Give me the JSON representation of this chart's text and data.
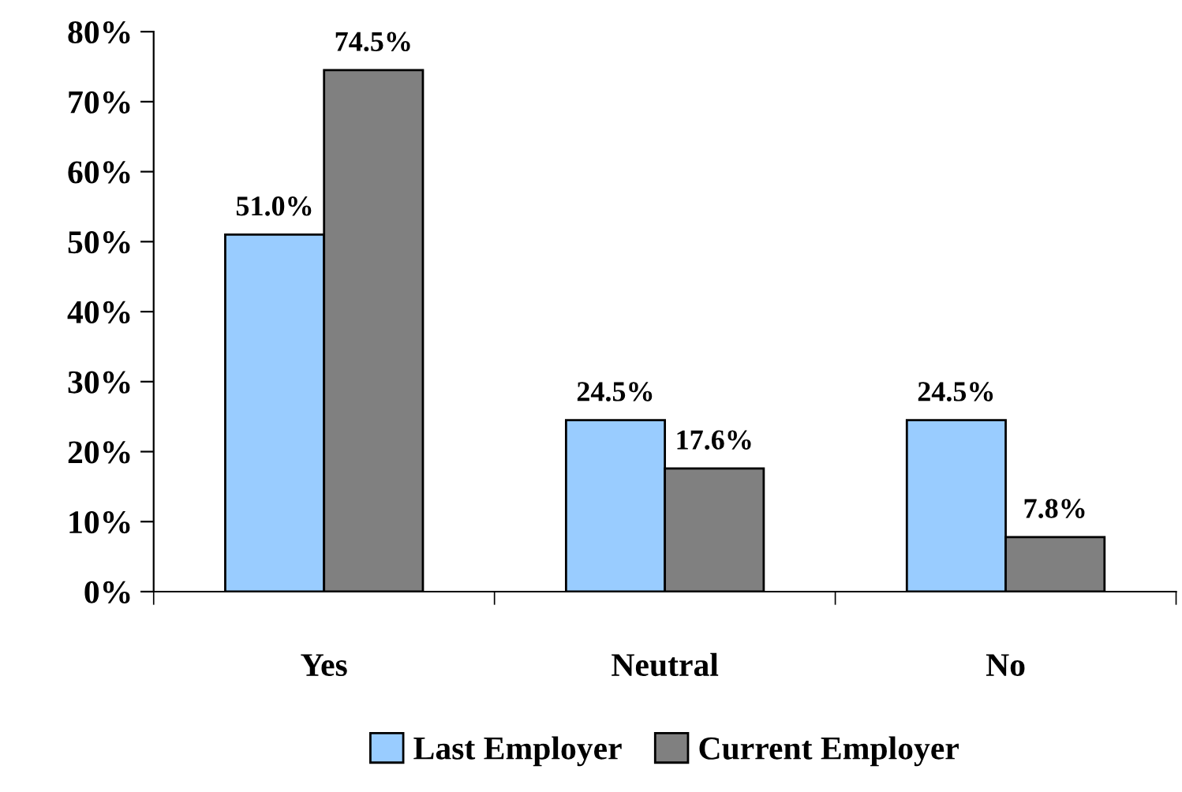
{
  "chart_data": {
    "type": "bar",
    "categories": [
      "Yes",
      "Neutral",
      "No"
    ],
    "series": [
      {
        "name": "Last Employer",
        "color": "#99ccff",
        "values": [
          51.0,
          24.5,
          24.5
        ],
        "value_labels": [
          "51.0%",
          "24.5%",
          "24.5%"
        ]
      },
      {
        "name": "Current Employer",
        "color": "#808080",
        "values": [
          74.5,
          17.6,
          7.8
        ],
        "value_labels": [
          "74.5%",
          "17.6%",
          "7.8%"
        ]
      }
    ],
    "ylim": [
      0,
      80
    ],
    "yticks": [
      {
        "value": 0,
        "label": "0%"
      },
      {
        "value": 10,
        "label": "10%"
      },
      {
        "value": 20,
        "label": "20%"
      },
      {
        "value": 30,
        "label": "30%"
      },
      {
        "value": 40,
        "label": "40%"
      },
      {
        "value": 50,
        "label": "50%"
      },
      {
        "value": 60,
        "label": "60%"
      },
      {
        "value": 70,
        "label": "70%"
      },
      {
        "value": 80,
        "label": "80%"
      }
    ],
    "grid": false,
    "legend": "bottom"
  }
}
